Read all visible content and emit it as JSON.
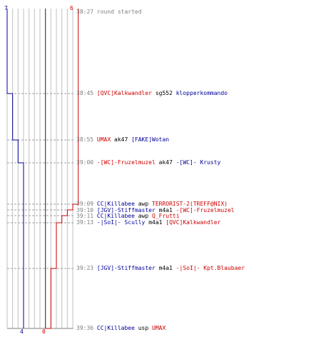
{
  "counts": {
    "blue_start": "7",
    "red_start": "6",
    "blue_end": "4",
    "red_end": "0"
  },
  "events": [
    {
      "time": "38:27",
      "text": "round started"
    },
    {
      "time": "38:45",
      "killer": "[QVC]Kalkwandler",
      "killer_team": "red",
      "weapon": "sg552",
      "victim": "klopperkommando",
      "victim_team": "blue"
    },
    {
      "time": "38:55",
      "killer": "UMAX",
      "killer_team": "red",
      "weapon": "ak47",
      "victim": "[FAKE]Wotan",
      "victim_team": "blue"
    },
    {
      "time": "39:00",
      "killer": "-[WC]-Fruzelmuzel",
      "killer_team": "red",
      "weapon": "ak47",
      "victim": "-[WC]- Krusty",
      "victim_team": "blue"
    },
    {
      "time": "39:09",
      "killer": "CC|Killabee",
      "killer_team": "blue",
      "weapon": "awp",
      "victim": "TERRORIST-2(TREFF@NIX)",
      "victim_team": "red"
    },
    {
      "time": "39:10",
      "killer": "[JGV]-Stiffmaster",
      "killer_team": "blue",
      "weapon": "m4a1",
      "victim": "-[WC]-Fruzelmuzel",
      "victim_team": "red"
    },
    {
      "time": "39:11",
      "killer": "CC|Killabee",
      "killer_team": "blue",
      "weapon": "awp",
      "victim": "Q_Frutti",
      "victim_team": "red"
    },
    {
      "time": "39:13",
      "killer": "-|SoI|- Scully",
      "killer_team": "blue",
      "weapon": "m4a1",
      "victim": "[QVC]Kalkwandler",
      "victim_team": "red"
    },
    {
      "time": "39:23",
      "killer": "[JGV]-Stiffmaster",
      "killer_team": "blue",
      "weapon": "m4a1",
      "victim": "-|SoI|- Kpt.Blaubaer",
      "victim_team": "red"
    },
    {
      "time": "39:36",
      "killer": "CC|Killabee",
      "killer_team": "blue",
      "weapon": "usp",
      "victim": "UMAX",
      "victim_team": "red"
    }
  ],
  "colors": {
    "red": "#cc0000",
    "blue": "#000099",
    "grid": "#c0c0c0",
    "dashed": "#a0a0a0",
    "center": "#404040"
  }
}
